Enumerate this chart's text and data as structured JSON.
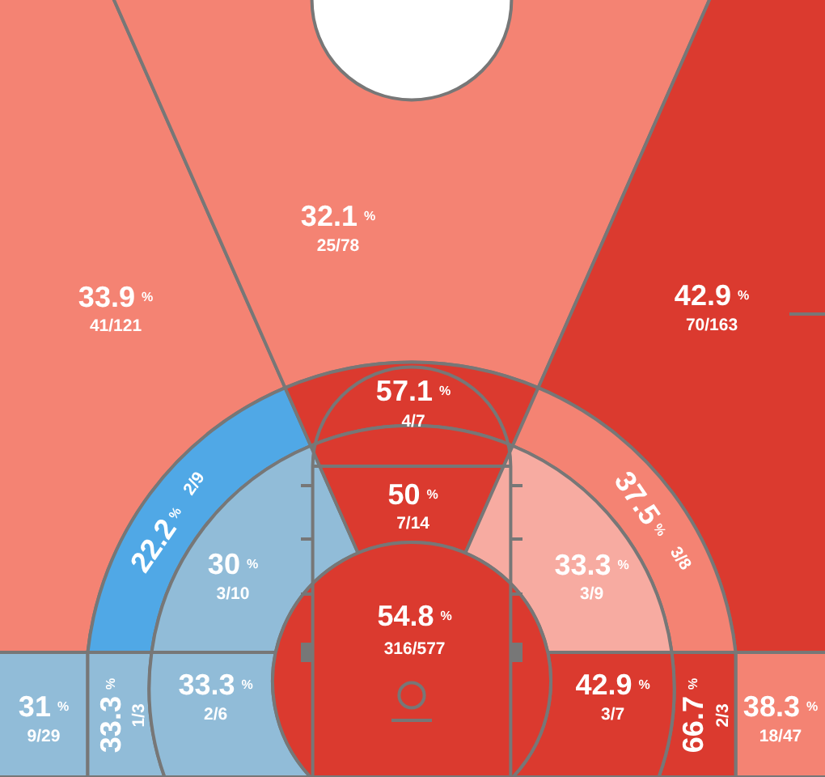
{
  "chart_data": {
    "type": "other",
    "categories": [
      "9/29",
      "41/121",
      "25/78",
      "70/163",
      "18/47",
      "2/9",
      "4/7",
      "3/8",
      "1/3",
      "2/3",
      "3/10",
      "7/14",
      "3/9",
      "2/6",
      "3/7",
      "316/577"
    ],
    "values": [
      31,
      33.9,
      32.1,
      42.9,
      38.3,
      22.2,
      57.1,
      37.5,
      33.3,
      66.7,
      30,
      50,
      33.3,
      33.3,
      42.9,
      54.8
    ],
    "value_labels": [
      "31 %",
      "33.9 %",
      "32.1 %",
      "42.9 %",
      "38.3 %",
      "22.2 %",
      "57.1 %",
      "37.5 %",
      "33.3 %",
      "66.7 %",
      "30 %",
      "50 %",
      "33.3 %",
      "33.3 %",
      "42.9 %",
      "54.8 %"
    ],
    "colors": [
      "#91bcd8",
      "#f48373",
      "#f48373",
      "#db3a2f",
      "#f48373",
      "#50a8e6",
      "#db3a2f",
      "#f48373",
      "#91bcd8",
      "#db3a2f",
      "#91bcd8",
      "#db3a2f",
      "#f7aba1",
      "#91bcd8",
      "#db3a2f",
      "#db3a2f"
    ]
  }
}
